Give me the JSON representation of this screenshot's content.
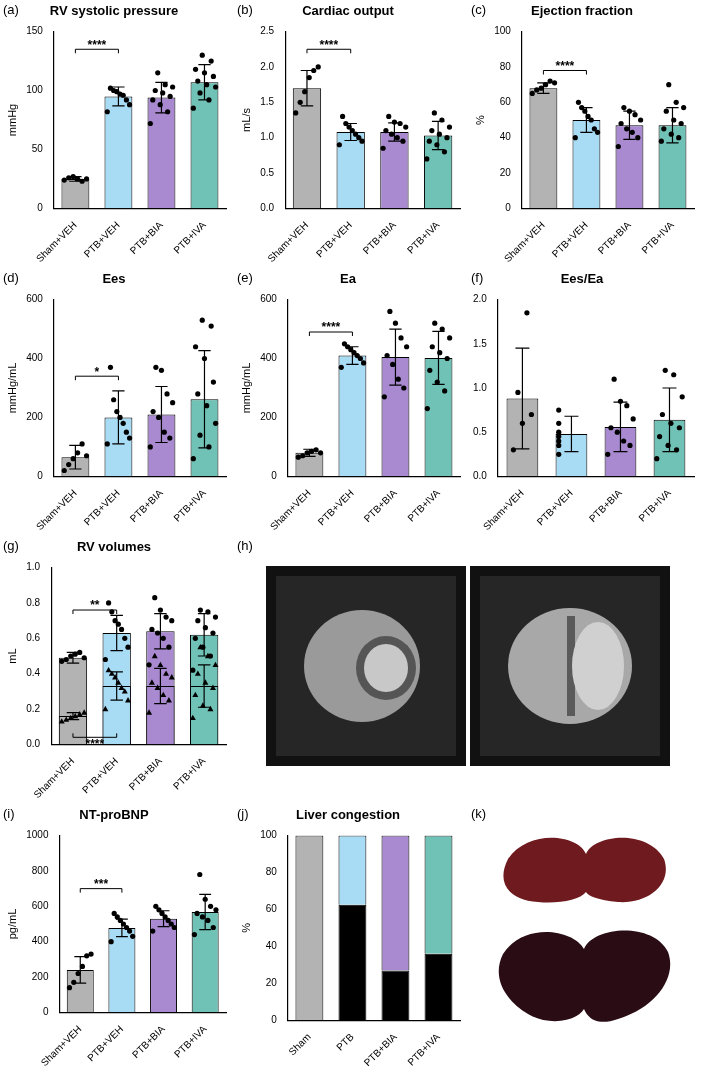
{
  "chart_data": [
    {
      "panel": "(a)",
      "type": "bar",
      "title": "RV systolic pressure",
      "y_label": "mmHg",
      "grid": false,
      "categories": [
        "Sham+VEH",
        "PTB+VEH",
        "PTB+BIA",
        "PTB+IVA"
      ],
      "colors": [
        "#b3b3b3",
        "#a8dcf5",
        "#a98ad0",
        "#6fc2b5"
      ],
      "ylim": [
        0,
        150
      ],
      "yticks": [
        0,
        50,
        100,
        150
      ],
      "series": [
        {
          "marker": "circle",
          "values": [
            25,
            95,
            94,
            107
          ],
          "error": [
            2,
            8,
            13,
            15
          ],
          "points": [
            [
              24,
              26,
              27,
              25,
              23,
              25
            ],
            [
              82,
              88,
              92,
              96,
              97,
              99,
              100,
              102
            ],
            [
              72,
              82,
              88,
              92,
              95,
              98,
              100,
              103,
              105,
              115
            ],
            [
              85,
              92,
              98,
              103,
              105,
              108,
              112,
              115,
              118,
              125,
              130
            ]
          ]
        }
      ],
      "annotations": [
        {
          "text": "****",
          "from": 0,
          "to": 1,
          "y": 135
        }
      ]
    },
    {
      "panel": "(b)",
      "type": "bar",
      "title": "Cardiac output",
      "y_label": "mL/s",
      "grid": false,
      "categories": [
        "Sham+VEH",
        "PTB+VEH",
        "PTB+BIA",
        "PTB+IVA"
      ],
      "colors": [
        "#b3b3b3",
        "#a8dcf5",
        "#a98ad0",
        "#6fc2b5"
      ],
      "ylim": [
        0,
        2.5
      ],
      "yticks": [
        {
          "value": 0,
          "label": "0.0"
        },
        {
          "value": 0.5,
          "label": "0.5"
        },
        {
          "value": 1,
          "label": "1.0"
        },
        {
          "value": 1.5,
          "label": "1.5"
        },
        {
          "value": 2,
          "label": "2.0"
        },
        {
          "value": 2.5,
          "label": "2.5"
        }
      ],
      "series": [
        {
          "marker": "circle",
          "values": [
            1.7,
            1.08,
            1.08,
            1.03
          ],
          "error": [
            0.25,
            0.12,
            0.13,
            0.2
          ],
          "points": [
            [
              1.35,
              1.5,
              1.65,
              1.85,
              1.95,
              2.0
            ],
            [
              0.9,
              0.95,
              1.0,
              1.05,
              1.1,
              1.15,
              1.2,
              1.3
            ],
            [
              0.85,
              0.95,
              1.0,
              1.05,
              1.1,
              1.15,
              1.2,
              1.22,
              1.3
            ],
            [
              0.7,
              0.8,
              0.9,
              0.95,
              1.0,
              1.05,
              1.1,
              1.15,
              1.25,
              1.35
            ]
          ]
        }
      ],
      "annotations": [
        {
          "text": "****",
          "from": 0,
          "to": 1,
          "y": 2.25
        }
      ]
    },
    {
      "panel": "(c)",
      "type": "bar",
      "title": "Ejection fraction",
      "y_label": "%",
      "grid": false,
      "categories": [
        "Sham+VEH",
        "PTB+VEH",
        "PTB+BIA",
        "PTB+IVA"
      ],
      "colors": [
        "#b3b3b3",
        "#a8dcf5",
        "#a98ad0",
        "#6fc2b5"
      ],
      "ylim": [
        0,
        100
      ],
      "yticks": [
        0,
        20,
        40,
        60,
        80,
        100
      ],
      "series": [
        {
          "marker": "circle",
          "values": [
            68,
            50,
            47,
            47
          ],
          "error": [
            3,
            7,
            8,
            10
          ],
          "points": [
            [
              65,
              67,
              68,
              70,
              72,
              71
            ],
            [
              40,
              43,
              45,
              50,
              52,
              55,
              57,
              60
            ],
            [
              35,
              40,
              43,
              45,
              48,
              50,
              53,
              55,
              57
            ],
            [
              38,
              40,
              42,
              45,
              48,
              50,
              55,
              57,
              60,
              70
            ]
          ]
        }
      ],
      "annotations": [
        {
          "text": "****",
          "from": 0,
          "to": 1,
          "y": 78
        }
      ]
    },
    {
      "panel": "(d)",
      "type": "bar",
      "title": "Ees",
      "y_label": "mmHg/mL",
      "grid": false,
      "categories": [
        "Sham+VEH",
        "PTB+VEH",
        "PTB+BIA",
        "PTB+IVA"
      ],
      "colors": [
        "#b3b3b3",
        "#a8dcf5",
        "#a98ad0",
        "#6fc2b5"
      ],
      "ylim": [
        0,
        600
      ],
      "yticks": [
        0,
        200,
        400,
        600
      ],
      "series": [
        {
          "marker": "circle",
          "values": [
            65,
            200,
            210,
            262
          ],
          "error": [
            40,
            90,
            95,
            165
          ],
          "points": [
            [
              20,
              40,
              60,
              80,
              110,
              70
            ],
            [
              110,
              130,
              150,
              180,
              200,
              220,
              260,
              370
            ],
            [
              100,
              130,
              150,
              200,
              220,
              250,
              280,
              360,
              370
            ],
            [
              60,
              100,
              140,
              180,
              240,
              280,
              320,
              400,
              440,
              510,
              530
            ]
          ]
        }
      ],
      "annotations": [
        {
          "text": "*",
          "from": 0,
          "to": 1,
          "y": 340
        }
      ]
    },
    {
      "panel": "(e)",
      "type": "bar",
      "title": "Ea",
      "y_label": "mmHg/mL",
      "grid": false,
      "categories": [
        "Sham+VEH",
        "PTB+VEH",
        "PTB+BIA",
        "PTB+IVA"
      ],
      "colors": [
        "#b3b3b3",
        "#a8dcf5",
        "#a98ad0",
        "#6fc2b5"
      ],
      "ylim": [
        0,
        600
      ],
      "yticks": [
        0,
        200,
        400,
        600
      ],
      "series": [
        {
          "marker": "circle",
          "values": [
            80,
            410,
            405,
            402
          ],
          "error": [
            12,
            30,
            95,
            90
          ],
          "points": [
            [
              65,
              70,
              80,
              85,
              90,
              80
            ],
            [
              370,
              385,
              400,
              410,
              420,
              430,
              440,
              450
            ],
            [
              270,
              300,
              330,
              380,
              410,
              440,
              470,
              520,
              560
            ],
            [
              230,
              290,
              320,
              360,
              400,
              420,
              440,
              470,
              500,
              520
            ]
          ]
        }
      ],
      "annotations": [
        {
          "text": "****",
          "from": 0,
          "to": 1,
          "y": 490
        }
      ]
    },
    {
      "panel": "(f)",
      "type": "bar",
      "title": "Ees/Ea",
      "grid": false,
      "categories": [
        "Sham+VEH",
        "PTB+VEH",
        "PTB+BIA",
        "PTB+IVA"
      ],
      "colors": [
        "#b3b3b3",
        "#a8dcf5",
        "#a98ad0",
        "#6fc2b5"
      ],
      "ylim": [
        0,
        2
      ],
      "yticks": [
        {
          "value": 0,
          "label": "0.0"
        },
        {
          "value": 0.5,
          "label": "0.5"
        },
        {
          "value": 1,
          "label": "1.0"
        },
        {
          "value": 1.5,
          "label": "1.5"
        },
        {
          "value": 2,
          "label": "2.0"
        }
      ],
      "series": [
        {
          "marker": "circle",
          "values": [
            0.88,
            0.48,
            0.56,
            0.64
          ],
          "error": [
            0.57,
            0.2,
            0.28,
            0.36
          ],
          "points": [
            [
              0.3,
              0.6,
              0.7,
              0.95,
              1.85
            ],
            [
              0.25,
              0.35,
              0.4,
              0.45,
              0.5,
              0.6,
              0.75
            ],
            [
              0.25,
              0.35,
              0.4,
              0.5,
              0.55,
              0.65,
              0.8,
              0.85,
              1.1
            ],
            [
              0.2,
              0.3,
              0.35,
              0.45,
              0.55,
              0.6,
              0.7,
              0.9,
              1.15,
              1.2
            ]
          ]
        }
      ]
    },
    {
      "panel": "(g)",
      "type": "bar",
      "title": "RV volumes",
      "y_label": "mL",
      "grid": false,
      "categories": [
        "Sham+VEH",
        "PTB+VEH",
        "PTB+BIA",
        "PTB+IVA"
      ],
      "colors": [
        "#b3b3b3",
        "#a8dcf5",
        "#a98ad0",
        "#6fc2b5"
      ],
      "ylim": [
        0,
        1
      ],
      "yticks": [
        {
          "value": 0,
          "label": "0.0"
        },
        {
          "value": 0.2,
          "label": "0.2"
        },
        {
          "value": 0.4,
          "label": "0.4"
        },
        {
          "value": 0.6,
          "label": "0.6"
        },
        {
          "value": 0.8,
          "label": "0.8"
        },
        {
          "value": 1,
          "label": "1.0"
        }
      ],
      "series": [
        {
          "marker": "circle",
          "values": [
            0.49,
            0.63,
            0.64,
            0.62
          ],
          "error": [
            0.03,
            0.1,
            0.1,
            0.12
          ],
          "points": [
            [
              0.47,
              0.48,
              0.5,
              0.51,
              0.52,
              0.49
            ],
            [
              0.48,
              0.55,
              0.6,
              0.65,
              0.68,
              0.7,
              0.75,
              0.8
            ],
            [
              0.45,
              0.55,
              0.6,
              0.63,
              0.65,
              0.7,
              0.72,
              0.76,
              0.83
            ],
            [
              0.42,
              0.5,
              0.55,
              0.6,
              0.63,
              0.66,
              0.7,
              0.72,
              0.75,
              0.76
            ]
          ]
        },
        {
          "marker": "triangle",
          "values": [
            0.16,
            0.33,
            0.33,
            0.33
          ],
          "error": [
            0.02,
            0.08,
            0.1,
            0.12
          ],
          "points": [
            [
              0.13,
              0.14,
              0.15,
              0.16,
              0.17,
              0.18
            ],
            [
              0.2,
              0.25,
              0.3,
              0.32,
              0.35,
              0.38,
              0.4,
              0.42
            ],
            [
              0.18,
              0.25,
              0.28,
              0.32,
              0.35,
              0.38,
              0.4,
              0.45,
              0.5
            ],
            [
              0.15,
              0.2,
              0.22,
              0.28,
              0.32,
              0.35,
              0.4,
              0.45,
              0.5,
              0.55
            ]
          ]
        }
      ],
      "annotations": [
        {
          "text": "**",
          "from": 0,
          "to": 1,
          "y": 0.76
        },
        {
          "text": "****",
          "from": 0,
          "to": 1,
          "y": 0.04
        }
      ]
    },
    {
      "panel": "(i)",
      "type": "bar",
      "title": "NT-proBNP",
      "y_label": "pg/mL",
      "grid": false,
      "categories": [
        "Sham+VEH",
        "PTB+VEH",
        "PTB+BIA",
        "PTB+IVA"
      ],
      "colors": [
        "#b3b3b3",
        "#a8dcf5",
        "#a98ad0",
        "#6fc2b5"
      ],
      "ylim": [
        0,
        1000
      ],
      "yticks": [
        0,
        200,
        400,
        600,
        800,
        1000
      ],
      "series": [
        {
          "marker": "circle",
          "values": [
            240,
            478,
            530,
            568
          ],
          "error": [
            75,
            50,
            45,
            100
          ],
          "points": [
            [
              140,
              170,
              220,
              260,
              320,
              330
            ],
            [
              400,
              430,
              460,
              480,
              500,
              520,
              540,
              560
            ],
            [
              460,
              480,
              500,
              520,
              540,
              560,
              580,
              600
            ],
            [
              440,
              480,
              520,
              540,
              560,
              580,
              600,
              640,
              780
            ]
          ]
        }
      ],
      "annotations": [
        {
          "text": "***",
          "from": 0,
          "to": 1,
          "y": 700
        }
      ]
    },
    {
      "panel": "(j)",
      "type": "bar",
      "title": "Liver congestion",
      "y_label": "%",
      "grid": false,
      "stacked": true,
      "categories": [
        "Sham",
        "PTB",
        "PTB+BIA",
        "PTB+IVA"
      ],
      "ylim": [
        0,
        100
      ],
      "yticks": [
        0,
        20,
        40,
        60,
        80,
        100
      ],
      "series": [
        {
          "color": "#000000",
          "values": [
            0,
            62.5,
            27,
            36
          ]
        },
        {
          "colors": [
            "#b3b3b3",
            "#a8dcf5",
            "#a98ad0",
            "#6fc2b5"
          ],
          "values": [
            100,
            37.5,
            73,
            64
          ]
        }
      ]
    }
  ],
  "images": [
    {
      "panel": "(h)"
    },
    {
      "panel": "(k)"
    }
  ]
}
